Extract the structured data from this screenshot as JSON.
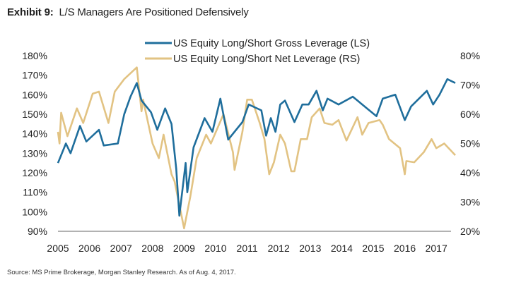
{
  "title": {
    "label": "Exhibit 9:",
    "text": "L/S Managers Are Positioned Defensively"
  },
  "source": "Source: MS Prime Brokerage, Morgan Stanley Research. As of Aug. 4, 2017.",
  "colors": {
    "gross": "#1f6e9c",
    "net": "#e2c383",
    "axis": "#666666"
  },
  "chart_data": {
    "type": "line",
    "title": "L/S Managers Are Positioned Defensively",
    "legend_position": "top-center",
    "grid": false,
    "x_ticks": [
      "2005",
      "2006",
      "2007",
      "2008",
      "2009",
      "2010",
      "2011",
      "2012",
      "2013",
      "2014",
      "2015",
      "2016",
      "2017"
    ],
    "xlim": [
      2005,
      2017.6
    ],
    "y_left": {
      "ticks": [
        "90%",
        "100%",
        "110%",
        "120%",
        "130%",
        "140%",
        "150%",
        "160%",
        "170%",
        "180%"
      ],
      "range": [
        90,
        180
      ]
    },
    "y_right": {
      "ticks": [
        "20%",
        "30%",
        "40%",
        "50%",
        "60%",
        "70%",
        "80%"
      ],
      "range": [
        20,
        80
      ]
    },
    "series": [
      {
        "name": "US Equity Long/Short Gross Leverage (LS)",
        "axis": "left",
        "x": [
          2005.0,
          2005.25,
          2005.4,
          2005.7,
          2005.9,
          2006.3,
          2006.45,
          2006.9,
          2007.1,
          2007.3,
          2007.5,
          2007.65,
          2007.95,
          2008.15,
          2008.4,
          2008.6,
          2008.75,
          2008.85,
          2009.05,
          2009.1,
          2009.3,
          2009.65,
          2009.9,
          2010.15,
          2010.4,
          2010.85,
          2011.05,
          2011.45,
          2011.6,
          2011.75,
          2011.9,
          2012.05,
          2012.2,
          2012.5,
          2012.75,
          2012.95,
          2013.2,
          2013.4,
          2013.55,
          2013.9,
          2014.35,
          2014.8,
          2015.1,
          2015.3,
          2015.7,
          2016.0,
          2016.2,
          2016.7,
          2016.9,
          2017.1,
          2017.35,
          2017.6
        ],
        "y": [
          125,
          135,
          130,
          144,
          136,
          142,
          134,
          135,
          150,
          159,
          166,
          157,
          151,
          142,
          153,
          145,
          122,
          98,
          125,
          110,
          133,
          148,
          141,
          158,
          137,
          146,
          155,
          152,
          139,
          148,
          141,
          155,
          157,
          146,
          155,
          155,
          162,
          152,
          158,
          155,
          159,
          153,
          149,
          158,
          160,
          147,
          154,
          162,
          155,
          160,
          168,
          166
        ]
      },
      {
        "name": "US Equity Long/Short Net Leverage (RS)",
        "axis": "right",
        "x": [
          2005.0,
          2005.05,
          2005.1,
          2005.3,
          2005.6,
          2005.8,
          2006.1,
          2006.3,
          2006.6,
          2006.8,
          2007.1,
          2007.5,
          2007.65,
          2007.7,
          2008.0,
          2008.2,
          2008.35,
          2008.6,
          2008.7,
          2009.0,
          2009.2,
          2009.4,
          2009.7,
          2009.85,
          2010.25,
          2010.55,
          2010.6,
          2010.85,
          2011.0,
          2011.15,
          2011.4,
          2011.55,
          2011.7,
          2011.85,
          2012.05,
          2012.2,
          2012.4,
          2012.5,
          2012.7,
          2012.9,
          2013.05,
          2013.3,
          2013.45,
          2013.7,
          2013.9,
          2014.15,
          2014.5,
          2014.65,
          2014.85,
          2015.2,
          2015.3,
          2015.5,
          2015.85,
          2016.0,
          2016.05,
          2016.3,
          2016.6,
          2016.85,
          2017.0,
          2017.25,
          2017.6
        ],
        "y": [
          54,
          50,
          60.5,
          52.5,
          62,
          57,
          67,
          67.7,
          57,
          67.7,
          72,
          76,
          61,
          65,
          50,
          45,
          53,
          39.5,
          37,
          21,
          32,
          45,
          53,
          50,
          60,
          47,
          41,
          54,
          65,
          65,
          57,
          51.5,
          39.5,
          43.6,
          53,
          50,
          40.5,
          40.5,
          51.5,
          51.5,
          59,
          62,
          57,
          56.4,
          58,
          51,
          59,
          53,
          57,
          58,
          56.4,
          51.5,
          48.4,
          39.5,
          44,
          43.6,
          47,
          51.5,
          48.4,
          50,
          46
        ]
      }
    ]
  }
}
